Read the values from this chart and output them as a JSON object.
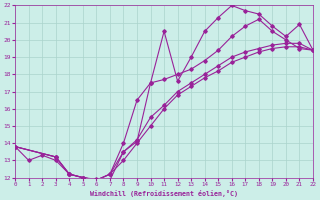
{
  "xlabel": "Windchill (Refroidissement éolien,°C)",
  "background_color": "#cceee8",
  "grid_color": "#aad4cc",
  "line_color": "#992299",
  "xlim": [
    0,
    22
  ],
  "ylim": [
    12,
    22
  ],
  "xticks": [
    0,
    1,
    2,
    3,
    4,
    5,
    6,
    7,
    8,
    9,
    10,
    11,
    12,
    13,
    14,
    15,
    16,
    17,
    18,
    19,
    20,
    21,
    22
  ],
  "yticks": [
    12,
    13,
    14,
    15,
    16,
    17,
    18,
    19,
    20,
    21,
    22
  ],
  "line1_x": [
    0,
    1,
    2,
    3,
    4,
    5,
    6,
    7,
    8,
    9,
    10,
    11,
    12,
    13,
    14,
    15,
    16,
    17,
    18,
    19,
    20,
    21,
    22
  ],
  "line1_y": [
    13.8,
    13.0,
    13.3,
    13.0,
    12.2,
    12.0,
    11.9,
    11.85,
    13.5,
    14.1,
    17.5,
    20.5,
    17.6,
    19.0,
    20.5,
    21.3,
    22.0,
    21.7,
    21.5,
    20.8,
    20.2,
    20.9,
    19.4
  ],
  "line2_x": [
    0,
    3,
    4,
    5,
    6,
    7,
    8,
    9,
    10,
    11,
    12,
    13,
    14,
    15,
    16,
    17,
    18,
    19,
    20,
    21,
    22
  ],
  "line2_y": [
    13.8,
    13.2,
    12.2,
    12.0,
    11.85,
    12.2,
    13.5,
    14.2,
    15.5,
    16.2,
    17.0,
    17.5,
    18.0,
    18.5,
    19.0,
    19.3,
    19.5,
    19.7,
    19.8,
    19.8,
    19.4
  ],
  "line3_x": [
    0,
    3,
    4,
    5,
    6,
    7,
    8,
    9,
    10,
    11,
    12,
    13,
    14,
    15,
    16,
    17,
    18,
    19,
    20,
    21,
    22
  ],
  "line3_y": [
    13.8,
    13.2,
    12.2,
    12.0,
    11.85,
    12.2,
    14.0,
    16.5,
    17.5,
    17.7,
    18.0,
    18.3,
    18.8,
    19.4,
    20.2,
    20.8,
    21.2,
    20.5,
    20.0,
    19.5,
    19.4
  ],
  "line4_x": [
    0,
    3,
    4,
    5,
    6,
    7,
    8,
    9,
    10,
    11,
    12,
    13,
    14,
    15,
    16,
    17,
    18,
    19,
    20,
    21,
    22
  ],
  "line4_y": [
    13.8,
    13.2,
    12.2,
    12.0,
    11.85,
    12.2,
    13.0,
    14.0,
    15.0,
    16.0,
    16.8,
    17.3,
    17.8,
    18.2,
    18.7,
    19.0,
    19.3,
    19.5,
    19.6,
    19.6,
    19.4
  ]
}
